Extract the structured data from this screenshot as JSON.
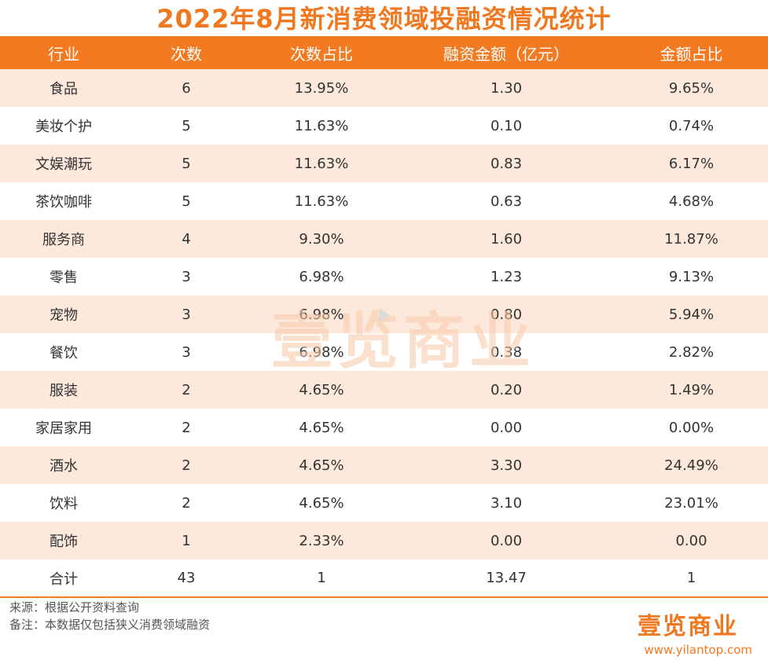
{
  "title": "2022年8月新消费领域投融资情况统计",
  "table": {
    "headers": [
      "行业",
      "次数",
      "次数占比",
      "融资金额（亿元）",
      "金额占比"
    ],
    "rows": [
      [
        "食品",
        "6",
        "13.95%",
        "1.30",
        "9.65%"
      ],
      [
        "美妆个护",
        "5",
        "11.63%",
        "0.10",
        "0.74%"
      ],
      [
        "文娱潮玩",
        "5",
        "11.63%",
        "0.83",
        "6.17%"
      ],
      [
        "茶饮咖啡",
        "5",
        "11.63%",
        "0.63",
        "4.68%"
      ],
      [
        "服务商",
        "4",
        "9.30%",
        "1.60",
        "11.87%"
      ],
      [
        "零售",
        "3",
        "6.98%",
        "1.23",
        "9.13%"
      ],
      [
        "宠物",
        "3",
        "6.98%",
        "0.80",
        "5.94%"
      ],
      [
        "餐饮",
        "3",
        "6.98%",
        "0.38",
        "2.82%"
      ],
      [
        "服装",
        "2",
        "4.65%",
        "0.20",
        "1.49%"
      ],
      [
        "家居家用",
        "2",
        "4.65%",
        "0.00",
        "0.00%"
      ],
      [
        "酒水",
        "2",
        "4.65%",
        "3.30",
        "24.49%"
      ],
      [
        "饮料",
        "2",
        "4.65%",
        "3.10",
        "23.01%"
      ],
      [
        "配饰",
        "1",
        "2.33%",
        "0.00",
        "0.00"
      ],
      [
        "合计",
        "43",
        "1",
        "13.47",
        "1"
      ]
    ]
  },
  "footer": {
    "source": "来源：根据公开资料查询",
    "note": "备注：本数据仅包括狭义消费领域融资"
  },
  "brand": {
    "logo_text": "壹览商业",
    "url": "www.yilantop.com",
    "watermark_text": "壹览商业"
  },
  "colors": {
    "accent": "#f47a21",
    "row_alt": "#fde9dc"
  },
  "icons": {
    "watermark_play": "play-icon"
  }
}
